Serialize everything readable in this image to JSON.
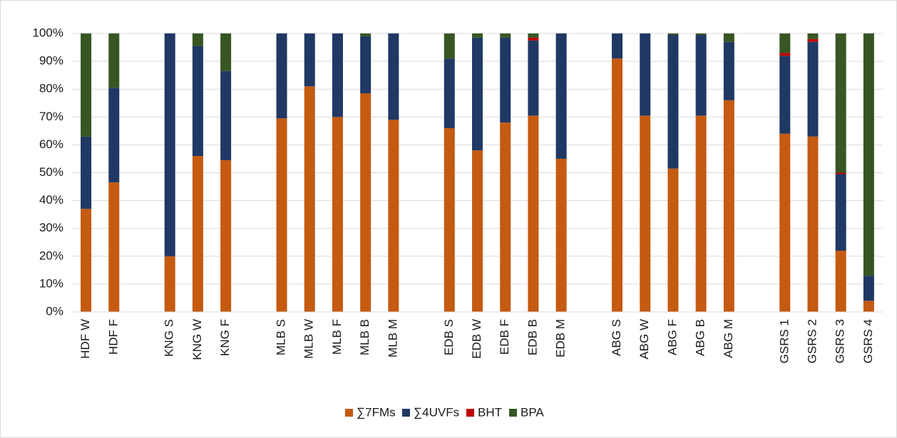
{
  "chart_data": {
    "type": "stacked_bar",
    "categories": [
      "HDF W",
      "HDF F",
      null,
      "KNG S",
      "KNG W",
      "KNG F",
      null,
      "MLB S",
      "MLB W",
      "MLB F",
      "MLB B",
      "MLB M",
      null,
      "EDB S",
      "EDB W",
      "EDB F",
      "EDB B",
      "EDB M",
      null,
      "ABG S",
      "ABG W",
      "ABG F",
      "ABG B",
      "ABG M",
      null,
      "GSRS 1",
      "GSRS 2",
      "GSRS 3",
      "GSRS 4"
    ],
    "series": [
      {
        "name": "∑7FMs",
        "color": "#c55a11",
        "values": [
          37,
          46.5,
          null,
          20,
          56,
          54.5,
          null,
          69.5,
          81,
          70,
          78.5,
          69,
          null,
          66,
          58,
          68,
          70.5,
          55,
          null,
          91,
          70.5,
          51.5,
          70.5,
          76,
          null,
          64,
          63,
          22,
          4
        ]
      },
      {
        "name": "∑4UVFs",
        "color": "#203864",
        "values": [
          26,
          34,
          null,
          80,
          39.5,
          32,
          null,
          30.5,
          19,
          30,
          20.5,
          31,
          null,
          25,
          40.5,
          30.5,
          27,
          45,
          null,
          9,
          29.5,
          48,
          29,
          21,
          null,
          28,
          34,
          27.5,
          9
        ]
      },
      {
        "name": "BHT",
        "color": "#c00000",
        "values": [
          0,
          0,
          null,
          0,
          0,
          0,
          null,
          0,
          0,
          0,
          0,
          0,
          null,
          0,
          0,
          0,
          1,
          0,
          null,
          0,
          0,
          0,
          0,
          0,
          null,
          1,
          1,
          0.5,
          0
        ]
      },
      {
        "name": "BPA",
        "color": "#375623",
        "values": [
          37,
          19.5,
          null,
          0,
          4.5,
          13.5,
          null,
          0,
          0,
          0,
          1,
          0,
          null,
          9,
          1.5,
          1.5,
          1.5,
          0,
          null,
          0,
          0,
          0.5,
          0.5,
          3,
          null,
          7,
          2,
          50,
          87
        ]
      }
    ],
    "ylim": [
      0,
      100
    ],
    "yticks": [
      {
        "value": 0,
        "label": "0%"
      },
      {
        "value": 10,
        "label": "10%"
      },
      {
        "value": 20,
        "label": "20%"
      },
      {
        "value": 30,
        "label": "30%"
      },
      {
        "value": 40,
        "label": "40%"
      },
      {
        "value": 50,
        "label": "50%"
      },
      {
        "value": 60,
        "label": "60%"
      },
      {
        "value": 70,
        "label": "70%"
      },
      {
        "value": 80,
        "label": "80%"
      },
      {
        "value": 90,
        "label": "90%"
      },
      {
        "value": 100,
        "label": "100%"
      }
    ],
    "grid": true,
    "legend": "bottom"
  }
}
